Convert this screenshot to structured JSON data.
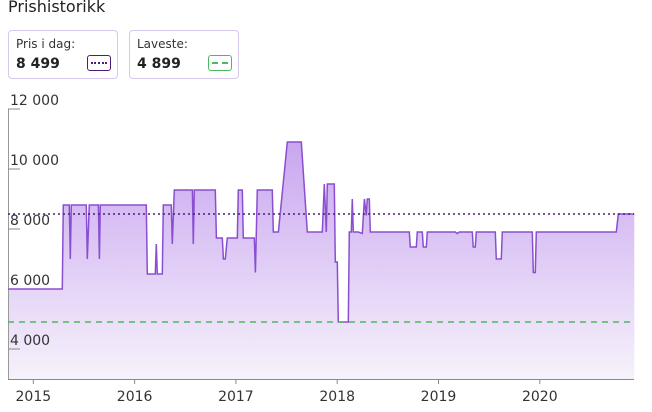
{
  "chart_data": {
    "type": "line",
    "title": "Prishistorikk",
    "series": [
      {
        "name": "Pris",
        "color": "#8a4fd0",
        "x": [
          2014.753,
          2015.286,
          2015.296,
          2015.355,
          2015.365,
          2015.375,
          2015.523,
          2015.533,
          2015.553,
          2015.642,
          2015.652,
          2015.661,
          2016.115,
          2016.125,
          2016.204,
          2016.214,
          2016.224,
          2016.273,
          2016.283,
          2016.362,
          2016.372,
          2016.392,
          2016.57,
          2016.579,
          2016.589,
          2016.797,
          2016.807,
          2016.866,
          2016.876,
          2016.895,
          2016.915,
          2017.014,
          2017.024,
          2017.063,
          2017.073,
          2017.182,
          2017.192,
          2017.211,
          2017.359,
          2017.369,
          2017.419,
          2017.507,
          2017.646,
          2017.705,
          2017.853,
          2017.873,
          2017.892,
          2017.902,
          2017.971,
          2017.981,
          2018.001,
          2018.011,
          2018.11,
          2018.119,
          2018.139,
          2018.149,
          2018.159,
          2018.208,
          2018.248,
          2018.268,
          2018.287,
          2018.297,
          2018.317,
          2018.327,
          2018.712,
          2018.722,
          2018.781,
          2018.791,
          2018.84,
          2018.85,
          2018.88,
          2018.889,
          2019.166,
          2019.186,
          2019.205,
          2019.334,
          2019.343,
          2019.363,
          2019.373,
          2019.561,
          2019.571,
          2019.62,
          2019.63,
          2019.926,
          2019.936,
          2019.956,
          2019.965,
          2020.755,
          2020.775,
          2020.933
        ],
        "values": [
          6000,
          6000,
          8800,
          8800,
          7000,
          8800,
          8800,
          7000,
          8800,
          8800,
          7000,
          8800,
          8800,
          6500,
          6500,
          7500,
          6500,
          6500,
          8800,
          8800,
          7500,
          9300,
          9300,
          7500,
          9300,
          9300,
          7700,
          7700,
          7000,
          7000,
          7700,
          7700,
          9300,
          9300,
          7700,
          7700,
          6550,
          9300,
          9300,
          7900,
          7900,
          10900,
          10900,
          7900,
          7900,
          9500,
          7900,
          9500,
          9500,
          6900,
          6900,
          4899,
          4899,
          7900,
          7900,
          9000,
          7900,
          7900,
          7850,
          9000,
          8450,
          9000,
          9000,
          7900,
          7900,
          7400,
          7400,
          7900,
          7900,
          7400,
          7400,
          7900,
          7900,
          7850,
          7900,
          7900,
          7400,
          7400,
          7900,
          7900,
          7000,
          7000,
          7900,
          7900,
          6550,
          6550,
          7900,
          7900,
          8499,
          8499
        ]
      }
    ],
    "reference_lines": [
      {
        "name": "Pris i dag:",
        "value": 8499,
        "label": "8 499",
        "color": "#4a1d78",
        "style": "dotted"
      },
      {
        "name": "Laveste:",
        "value": 4899,
        "label": "4 899",
        "color": "#4cb860",
        "style": "dashed"
      }
    ],
    "xlim": [
      2014.75,
      2020.93
    ],
    "xticks": [
      2015,
      2016,
      2017,
      2018,
      2019,
      2020
    ],
    "ylim": [
      3000,
      12000
    ],
    "yticks": [
      {
        "value": 4000,
        "label": "4 000"
      },
      {
        "value": 6000,
        "label": "6 000"
      },
      {
        "value": 8000,
        "label": "8 000"
      },
      {
        "value": 10000,
        "label": "10 000"
      },
      {
        "value": 12000,
        "label": "12 000"
      }
    ]
  }
}
